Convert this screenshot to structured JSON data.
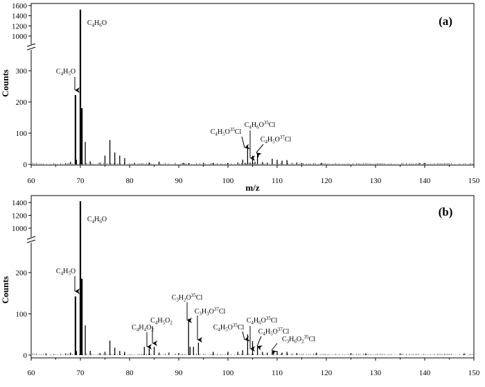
{
  "chart_data": [
    {
      "type": "bar",
      "panel_label": "(a)",
      "xlabel": "m/z",
      "ylabel": "Counts",
      "xlim": [
        60,
        150
      ],
      "x_ticks": [
        "60",
        "70",
        "80",
        "90",
        "100",
        "110",
        "120",
        "130",
        "140",
        "150"
      ],
      "y_axis_broken": true,
      "y_break_between": [
        300,
        1000
      ],
      "y_ticks_lower": [
        "0",
        "100",
        "200",
        "300"
      ],
      "y_ticks_upper": [
        "1000",
        "1200",
        "1400",
        "1600"
      ],
      "series": [
        {
          "x": [
            67,
            68,
            69,
            69.2,
            70,
            70.3,
            71,
            72,
            74,
            75,
            76,
            77,
            78,
            79,
            81,
            84,
            86,
            91,
            92,
            95,
            97,
            100,
            102,
            103,
            103.5,
            104,
            104.5,
            105,
            105.5,
            106,
            107,
            108,
            109,
            110,
            111,
            112,
            114,
            115,
            119,
            139,
            140
          ],
          "values": [
            3,
            8,
            222,
            15,
            1520,
            180,
            72,
            10,
            6,
            28,
            78,
            38,
            28,
            20,
            5,
            6,
            9,
            5,
            4,
            5,
            5,
            4,
            6,
            15,
            5,
            52,
            6,
            28,
            8,
            30,
            8,
            5,
            18,
            15,
            12,
            14,
            6,
            4,
            5,
            4,
            5
          ]
        }
      ],
      "annotations": [
        {
          "text": "C4H6O",
          "x": 70,
          "y": 1520,
          "arrow": false
        },
        {
          "text": "C4H5O",
          "x": 69,
          "y": 222,
          "arrow": true
        },
        {
          "text": "C4H5O35Cl",
          "x": 104,
          "y": 52,
          "arrow": true
        },
        {
          "text": "C4H6O35Cl",
          "x": 105,
          "y": 28,
          "arrow": true
        },
        {
          "text": "C4H5O37Cl",
          "x": 106,
          "y": 30,
          "arrow": true
        }
      ]
    },
    {
      "type": "bar",
      "panel_label": "(b)",
      "xlabel": "",
      "ylabel": "Counts",
      "xlim": [
        60,
        150
      ],
      "x_ticks": [
        "60",
        "70",
        "80",
        "90",
        "100",
        "110",
        "120",
        "130",
        "140",
        "150"
      ],
      "y_axis_broken": true,
      "y_break_between": [
        200,
        1000
      ],
      "y_ticks_lower": [
        "0",
        "100",
        "200"
      ],
      "y_ticks_upper": [
        "1000",
        "1200",
        "1400"
      ],
      "series": [
        {
          "x": [
            63,
            67,
            68,
            69,
            69.2,
            70,
            70.3,
            71,
            72,
            74,
            75,
            76,
            77,
            78,
            79,
            83,
            84,
            85,
            86,
            88,
            90,
            92,
            92.3,
            93,
            94,
            97,
            100,
            102,
            103,
            104,
            105,
            106,
            107,
            108,
            109,
            110,
            111,
            112,
            114,
            118,
            125,
            128,
            135,
            148
          ],
          "values": [
            4,
            4,
            6,
            142,
            10,
            1420,
            185,
            72,
            10,
            5,
            8,
            35,
            18,
            10,
            8,
            20,
            16,
            20,
            6,
            6,
            5,
            88,
            20,
            20,
            30,
            8,
            8,
            8,
            12,
            50,
            34,
            20,
            8,
            6,
            8,
            10,
            6,
            8,
            5,
            6,
            5,
            4,
            4,
            4
          ]
        }
      ],
      "annotations": [
        {
          "text": "C4H6O",
          "x": 70,
          "y": 1420,
          "arrow": false
        },
        {
          "text": "C4H5O",
          "x": 69,
          "y": 142,
          "arrow": true
        },
        {
          "text": "C4H4O2",
          "x": 84,
          "y": 16,
          "arrow": true
        },
        {
          "text": "C4H5O2",
          "x": 85,
          "y": 20,
          "arrow": true
        },
        {
          "text": "C3H2O35Cl",
          "x": 92,
          "y": 88,
          "arrow": true
        },
        {
          "text": "C3H3O37Cl",
          "x": 94,
          "y": 30,
          "arrow": true
        },
        {
          "text": "C4H5O35Cl",
          "x": 104,
          "y": 50,
          "arrow": true
        },
        {
          "text": "C4H6O35Cl",
          "x": 105,
          "y": 34,
          "arrow": true
        },
        {
          "text": "C4H5O37Cl",
          "x": 106,
          "y": 20,
          "arrow": true
        },
        {
          "text": "C3H6O235Cl",
          "x": 109,
          "y": 8,
          "arrow": true
        }
      ]
    }
  ]
}
